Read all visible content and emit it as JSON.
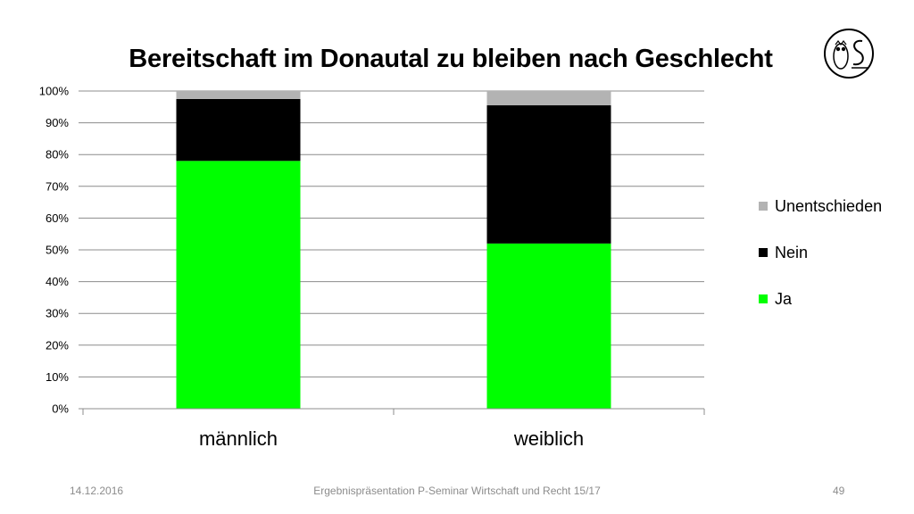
{
  "slide": {
    "title": "Bereitschaft im Donautal zu bleiben nach Geschlecht",
    "footer_date": "14.12.2016",
    "footer_center": "Ergebnispräsentation P-Seminar Wirtschaft und Recht 15/17",
    "footer_page": "49",
    "logo_icon": "owl-ls-logo-icon"
  },
  "chart_data": {
    "type": "bar",
    "stacked": true,
    "percent": true,
    "categories": [
      "männlich",
      "weiblich"
    ],
    "series": [
      {
        "name": "Ja",
        "color": "#00ff00",
        "values": [
          78,
          52
        ]
      },
      {
        "name": "Nein",
        "color": "#000000",
        "values": [
          19.5,
          43.5
        ]
      },
      {
        "name": "Unentschieden",
        "color": "#b3b3b3",
        "values": [
          2.5,
          4.5
        ]
      }
    ],
    "ylim": [
      0,
      100
    ],
    "yticks": [
      "0%",
      "10%",
      "20%",
      "30%",
      "40%",
      "50%",
      "60%",
      "70%",
      "80%",
      "90%",
      "100%"
    ],
    "grid": true,
    "legend_position": "right",
    "legend_order": [
      "Unentschieden",
      "Nein",
      "Ja"
    ]
  }
}
